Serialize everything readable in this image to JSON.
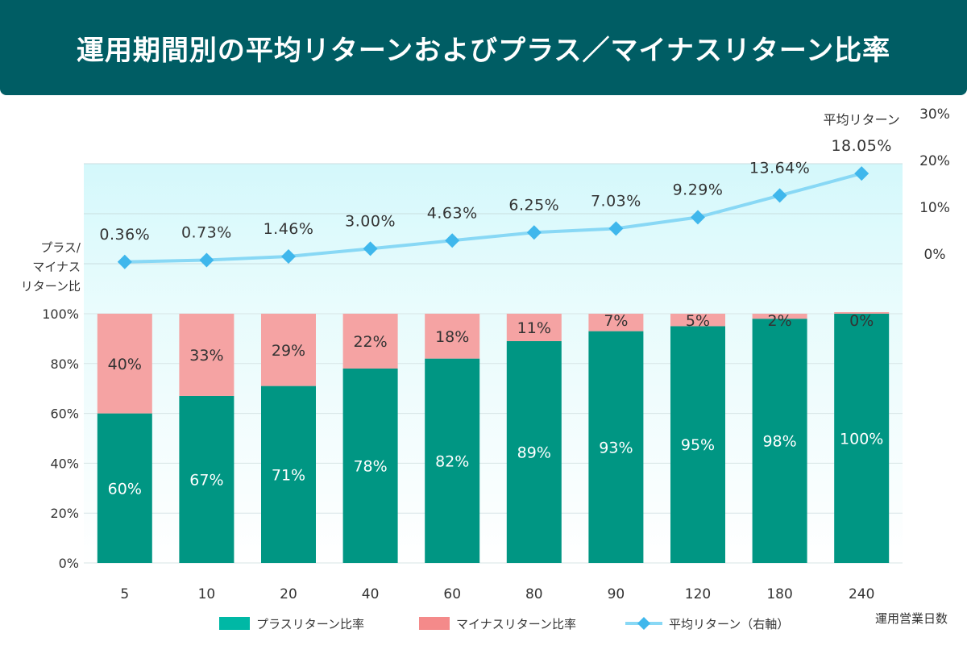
{
  "title": "運用期間別の平均リターンおよびプラス／マイナスリターン比率",
  "colors": {
    "header": "#005d64",
    "plus": "#009683",
    "minus": "#f5a3a3",
    "line": "#88d8f5",
    "marker": "#3fb7ec",
    "upper_bg": "#dcf9fb"
  },
  "chart_data": {
    "type": "bar+line",
    "categories": [
      "5",
      "10",
      "20",
      "40",
      "60",
      "80",
      "90",
      "120",
      "180",
      "240"
    ],
    "series": [
      {
        "name": "プラスリターン比率",
        "type": "stacked-bar",
        "values": [
          60,
          67,
          71,
          78,
          82,
          89,
          93,
          95,
          98,
          100
        ],
        "labels": [
          "60%",
          "67%",
          "71%",
          "78%",
          "82%",
          "89%",
          "93%",
          "95%",
          "98%",
          "100%"
        ]
      },
      {
        "name": "マイナスリターン比率",
        "type": "stacked-bar",
        "values": [
          40,
          33,
          29,
          22,
          18,
          11,
          7,
          5,
          2,
          0
        ],
        "labels": [
          "40%",
          "33%",
          "29%",
          "22%",
          "18%",
          "11%",
          "7%",
          "5%",
          "2%",
          "0%"
        ]
      },
      {
        "name": "平均リターン（右軸）",
        "type": "line",
        "axis": "right",
        "values": [
          0.36,
          0.73,
          1.46,
          3.0,
          4.63,
          6.25,
          7.03,
          9.29,
          13.64,
          18.05
        ],
        "labels": [
          "0.36%",
          "0.73%",
          "1.46%",
          "3.00%",
          "4.63%",
          "6.25%",
          "7.03%",
          "9.29%",
          "13.64%",
          "18.05%"
        ]
      }
    ],
    "left_axis": {
      "label_lines": [
        "プラス/",
        "マイナス",
        "リターン比"
      ],
      "ticks": [
        "0%",
        "20%",
        "40%",
        "60%",
        "80%",
        "100%"
      ],
      "range": [
        0,
        100
      ]
    },
    "right_axis": {
      "ticks": [
        "0%",
        "10%",
        "20%",
        "30%"
      ],
      "range": [
        0,
        30
      ]
    },
    "xlabel": "運用営業日数",
    "last_point_caption": "平均リターン",
    "legend": [
      "プラスリターン比率",
      "マイナスリターン比率",
      "平均リターン（右軸）"
    ]
  }
}
